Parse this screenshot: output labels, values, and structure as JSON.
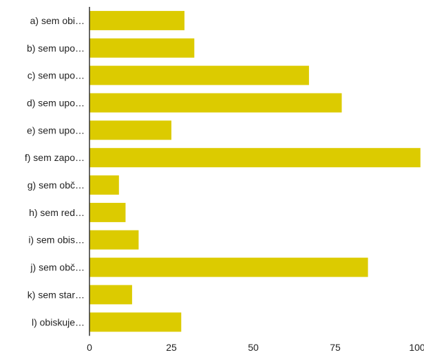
{
  "chart_data": {
    "type": "bar",
    "orientation": "horizontal",
    "categories": [
      "a) sem obi…",
      "b) sem upo…",
      "c) sem upo…",
      "d) sem upo…",
      "e) sem upo…",
      "f) sem zapo…",
      "g) sem obč…",
      "h) sem red…",
      "i) sem obis…",
      "j) sem obč…",
      "k) sem star…",
      "l) obiskuje…"
    ],
    "values": [
      29,
      32,
      67,
      77,
      25,
      101,
      9,
      11,
      15,
      85,
      13,
      28
    ],
    "xlim": [
      0,
      100
    ],
    "xticks": [
      "0",
      "25",
      "50",
      "75",
      "100"
    ],
    "grid": false,
    "legend": "none",
    "bar_color": "#dccb00",
    "axis_color": "#333333"
  }
}
